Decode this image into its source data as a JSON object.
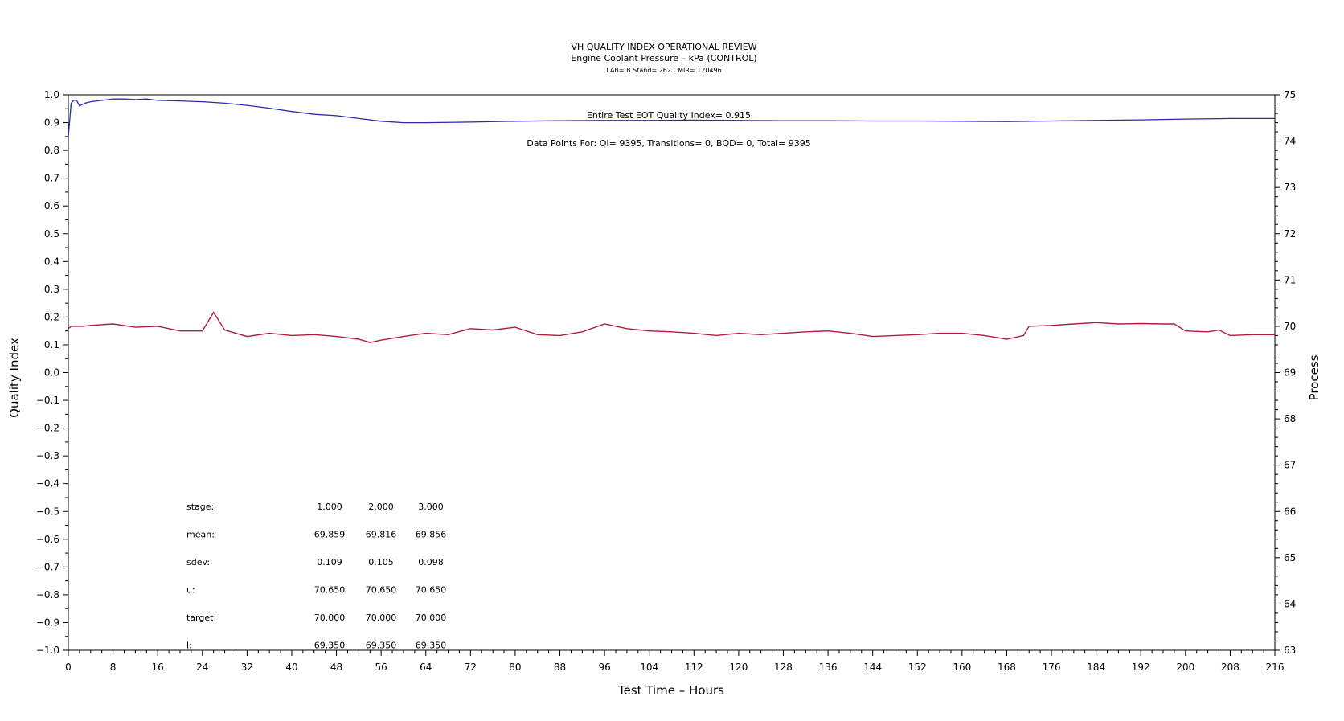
{
  "header": {
    "title": "VH QUALITY INDEX OPERATIONAL REVIEW",
    "subtitle": "Engine Coolant Pressure – kPa (CONTROL)",
    "subtitle2": "LAB= B Stand= 262 CMIR= 120496"
  },
  "annotations": {
    "eot": "Entire Test EOT Quality Index=   0.915",
    "points": "Data Points For: QI=  9395, Transitions=     0, BQD=     0, Total=  9395"
  },
  "stats": {
    "rows": [
      {
        "label": "stage:",
        "values": [
          "1.000",
          "2.000",
          "3.000"
        ]
      },
      {
        "label": "mean:",
        "values": [
          "69.859",
          "69.816",
          "69.856"
        ]
      },
      {
        "label": "sdev:",
        "values": [
          "0.109",
          "0.105",
          "0.098"
        ]
      },
      {
        "label": "u:",
        "values": [
          "70.650",
          "70.650",
          "70.650"
        ]
      },
      {
        "label": "target:",
        "values": [
          "70.000",
          "70.000",
          "70.000"
        ]
      },
      {
        "label": "l:",
        "values": [
          "69.350",
          "69.350",
          "69.350"
        ]
      }
    ]
  },
  "chart_data": {
    "type": "line",
    "xlabel": "Test Time – Hours",
    "ylabel_left": "Quality Index",
    "ylabel_right": "Process",
    "xlim": [
      0,
      216
    ],
    "ylim_left": [
      -1.0,
      1.0
    ],
    "ylim_right": [
      63,
      75
    ],
    "x_ticks": [
      "0",
      "8",
      "16",
      "24",
      "32",
      "40",
      "48",
      "56",
      "64",
      "72",
      "80",
      "88",
      "96",
      "104",
      "112",
      "120",
      "128",
      "136",
      "144",
      "152",
      "160",
      "168",
      "176",
      "184",
      "192",
      "200",
      "208",
      "216"
    ],
    "y_left_ticks": [
      "-1.0",
      "-0.9",
      "-0.8",
      "-0.7",
      "-0.6",
      "-0.5",
      "-0.4",
      "-0.3",
      "-0.2",
      "-0.1",
      "0.0",
      "0.1",
      "0.2",
      "0.3",
      "0.4",
      "0.5",
      "0.6",
      "0.7",
      "0.8",
      "0.9",
      "1.0"
    ],
    "y_right_ticks": [
      "63",
      "64",
      "65",
      "66",
      "67",
      "68",
      "69",
      "70",
      "71",
      "72",
      "73",
      "74",
      "75"
    ],
    "series": [
      {
        "axis": "left",
        "color": "#2b2bb0",
        "x": [
          0,
          0.5,
          1.0,
          1.5,
          2.0,
          2.5,
          3,
          4,
          6,
          8,
          10,
          12,
          14,
          16,
          20,
          24,
          28,
          32,
          36,
          40,
          44,
          48,
          52,
          56,
          60,
          64,
          72,
          80,
          88,
          96,
          104,
          112,
          120,
          128,
          136,
          144,
          152,
          160,
          168,
          176,
          184,
          192,
          200,
          208,
          216
        ],
        "y": [
          0.85,
          0.97,
          0.98,
          0.98,
          0.96,
          0.965,
          0.97,
          0.975,
          0.98,
          0.985,
          0.985,
          0.983,
          0.985,
          0.98,
          0.978,
          0.975,
          0.97,
          0.962,
          0.952,
          0.94,
          0.93,
          0.925,
          0.915,
          0.905,
          0.9,
          0.9,
          0.902,
          0.905,
          0.907,
          0.908,
          0.908,
          0.909,
          0.908,
          0.907,
          0.907,
          0.906,
          0.906,
          0.905,
          0.904,
          0.906,
          0.908,
          0.91,
          0.913,
          0.915,
          0.915
        ]
      },
      {
        "axis": "right",
        "color": "#b01e3c",
        "x": [
          0,
          0.5,
          2.2,
          2.5,
          4,
          8,
          12,
          16,
          20,
          22,
          24,
          26,
          28,
          32,
          36,
          40,
          44,
          48,
          52,
          54,
          56,
          60,
          64,
          68,
          72,
          76,
          80,
          84,
          88,
          92,
          96,
          100,
          104,
          108,
          112,
          116,
          120,
          124,
          128,
          132,
          136,
          140,
          144,
          148,
          152,
          156,
          160,
          164,
          168,
          171,
          172,
          176,
          180,
          184,
          188,
          192,
          196,
          198,
          200,
          204,
          206,
          208,
          212,
          216
        ],
        "y": [
          69.95,
          70.0,
          70.0,
          70.0,
          70.02,
          70.05,
          69.98,
          70.0,
          69.9,
          69.9,
          69.9,
          70.3,
          69.92,
          69.78,
          69.85,
          69.8,
          69.82,
          69.78,
          69.72,
          69.65,
          69.7,
          69.78,
          69.85,
          69.82,
          69.95,
          69.92,
          69.98,
          69.82,
          69.8,
          69.88,
          70.05,
          69.95,
          69.9,
          69.88,
          69.85,
          69.8,
          69.85,
          69.82,
          69.85,
          69.88,
          69.9,
          69.85,
          69.78,
          69.8,
          69.82,
          69.85,
          69.85,
          69.8,
          69.72,
          69.8,
          70.0,
          70.02,
          70.05,
          70.08,
          70.05,
          70.06,
          70.05,
          70.05,
          69.9,
          69.88,
          69.92,
          69.8,
          69.82,
          69.82
        ]
      }
    ]
  }
}
